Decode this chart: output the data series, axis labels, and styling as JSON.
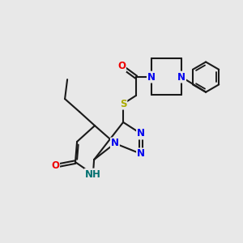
{
  "bg_color": "#e8e8e8",
  "bond_color": "#1a1a1a",
  "bond_lw": 1.5,
  "dbl_off": 0.06,
  "fs": 8.5,
  "colors": {
    "N": "#0000ee",
    "O": "#ee0000",
    "S": "#aaaa00",
    "NH": "#007070"
  },
  "xlim": [
    0,
    10
  ],
  "ylim": [
    0,
    10
  ]
}
